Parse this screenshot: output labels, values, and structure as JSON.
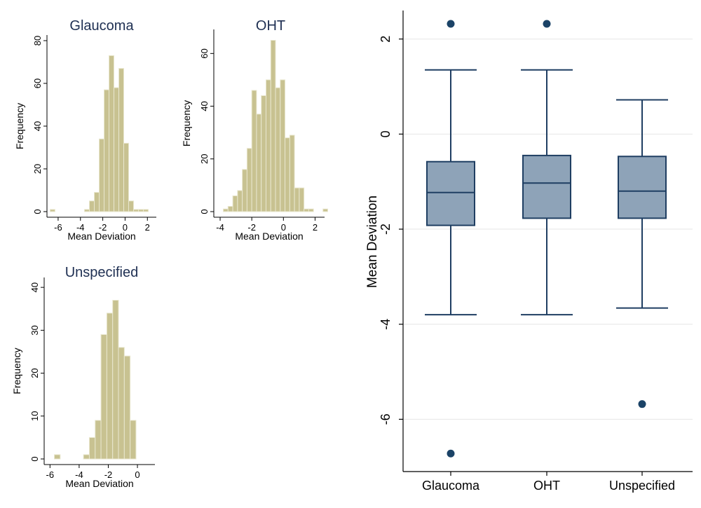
{
  "colors": {
    "hist_fill": "#c8c291",
    "hist_edge": "#e9e7cf",
    "box_fill": "#8ea3b8",
    "box_line": "#1f3e62",
    "outlier": "#1b4367",
    "axis": "#000000",
    "grid": "#e6e6e6",
    "title": "#1e2f52"
  },
  "chart_data": [
    {
      "type": "bar",
      "subtype": "histogram",
      "title": "Glaucoma",
      "xlabel": "Mean Deviation",
      "ylabel": "Frequency",
      "xlim": [
        -7,
        2.8
      ],
      "ylim": [
        0,
        80
      ],
      "xticks": [
        -6,
        -4,
        -2,
        0,
        2
      ],
      "yticks": [
        0,
        20,
        40,
        60,
        80
      ],
      "bin_width": 0.44,
      "bin_start": -6.72,
      "values": [
        1,
        0,
        0,
        0,
        0,
        0,
        0,
        1,
        5,
        9,
        34,
        57,
        73,
        58,
        67,
        32,
        5,
        1,
        1,
        1
      ]
    },
    {
      "type": "bar",
      "subtype": "histogram",
      "title": "OHT",
      "xlabel": "Mean Deviation",
      "ylabel": "Frequency",
      "xlim": [
        -4.4,
        2.6
      ],
      "ylim": [
        0,
        67
      ],
      "xticks": [
        -4,
        -2,
        0,
        2
      ],
      "yticks": [
        0,
        20,
        40,
        60
      ],
      "bin_width": 0.3,
      "bin_start": -3.8,
      "values": [
        1,
        2,
        6,
        8,
        16,
        24,
        46,
        37,
        44,
        50,
        65,
        47,
        50,
        28,
        29,
        9,
        9,
        1,
        1,
        0,
        0,
        1
      ]
    },
    {
      "type": "bar",
      "subtype": "histogram",
      "title": "Unspecified",
      "xlabel": "Mean Deviation",
      "ylabel": "Frequency",
      "xlim": [
        -6.4,
        1.2
      ],
      "ylim": [
        0,
        41
      ],
      "xticks": [
        -6,
        -4,
        -2,
        0
      ],
      "yticks": [
        0,
        10,
        20,
        30,
        40
      ],
      "bin_width": 0.4,
      "bin_start": -5.7,
      "values": [
        1,
        0,
        0,
        0,
        0,
        1,
        5,
        9,
        29,
        34,
        37,
        26,
        24,
        9
      ]
    },
    {
      "type": "box",
      "ylabel": "Mean Deviation",
      "ylim": [
        -7.1,
        2.6
      ],
      "yticks": [
        -6,
        -4,
        -2,
        0,
        2
      ],
      "grid": true,
      "categories": [
        "Glaucoma",
        "OHT",
        "Unspecified"
      ],
      "boxes": [
        {
          "whisker_low": -3.8,
          "q1": -1.92,
          "median": -1.23,
          "q3": -0.58,
          "whisker_high": 1.35,
          "outliers": [
            2.32,
            -6.72
          ]
        },
        {
          "whisker_low": -3.8,
          "q1": -1.77,
          "median": -1.03,
          "q3": -0.45,
          "whisker_high": 1.35,
          "outliers": [
            2.32
          ]
        },
        {
          "whisker_low": -3.66,
          "q1": -1.77,
          "median": -1.2,
          "q3": -0.47,
          "whisker_high": 0.72,
          "outliers": [
            -5.68
          ]
        }
      ]
    }
  ]
}
